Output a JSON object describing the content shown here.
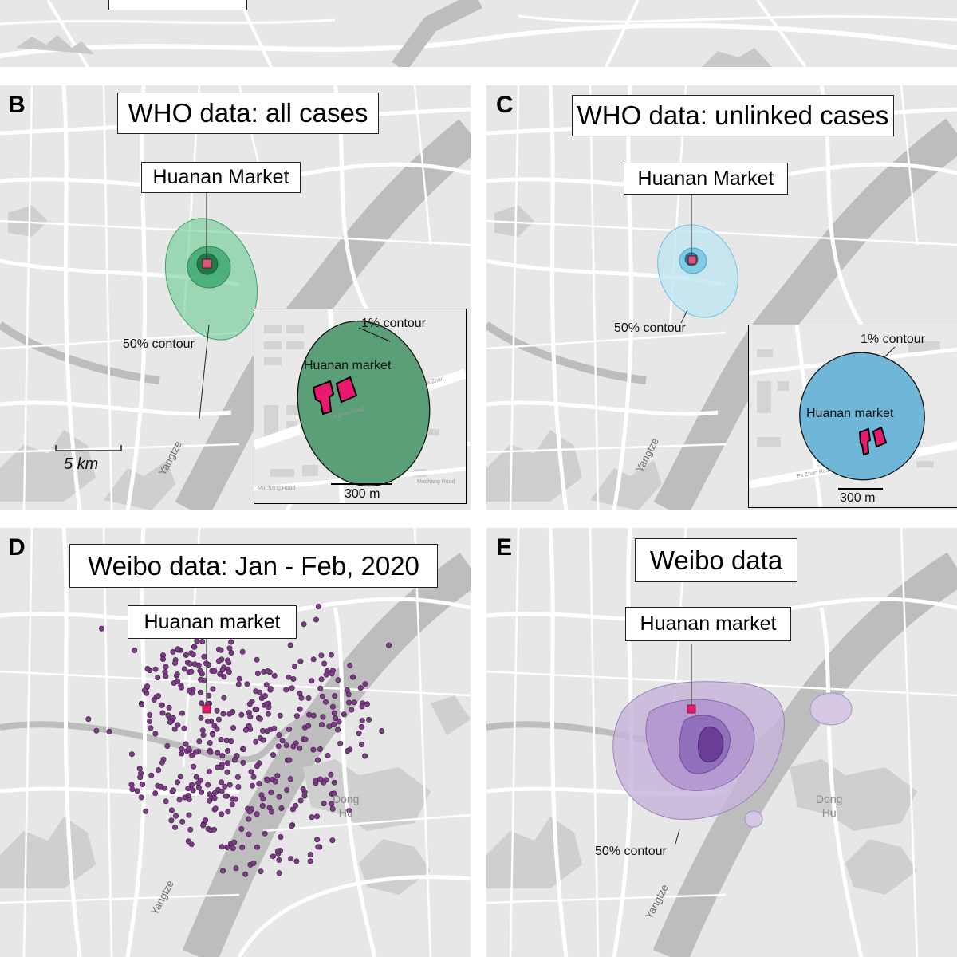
{
  "panels": {
    "a": {},
    "b": {
      "label": "B",
      "title": "WHO data: all cases",
      "market_label": "Huanan Market",
      "contour_label": "50% contour",
      "scale_label": "5 km",
      "river_label": "Yangtze",
      "inset": {
        "contour_label": "1% contour",
        "market_label": "Huanan market",
        "scale_label": "300 m",
        "road_1": "Fa Zhan Road",
        "road_2": "Fa Zhan",
        "road_3": "Machang Road",
        "road_4": "Machang Road"
      }
    },
    "c": {
      "label": "C",
      "title": "WHO data: unlinked cases",
      "market_label": "Huanan Market",
      "contour_label": "50% contour",
      "river_label": "Yangtze",
      "inset": {
        "contour_label": "1% contour",
        "market_label": "Huanan market",
        "scale_label": "300 m",
        "road_1": "Fa Zhan Road"
      }
    },
    "d": {
      "label": "D",
      "title": "Weibo data: Jan - Feb, 2020",
      "market_label": "Huanan market",
      "river_label": "Yangtze",
      "place_label": "Dong\nHu"
    },
    "e": {
      "label": "E",
      "title": "Weibo data",
      "market_label": "Huanan market",
      "contour_label": "50% contour",
      "river_label": "Yangtze",
      "place_label": "Dong\nHu"
    }
  },
  "colors": {
    "map_bg": "#e7e7e7",
    "roads": "#ffffff",
    "water": "#bdbdbd",
    "green_kde": "#3aa36a",
    "blue_kde": "#6cc3e0",
    "purple_kde": "#7e4ea6",
    "market": "#e8196e",
    "dots": "#7d3d86"
  }
}
